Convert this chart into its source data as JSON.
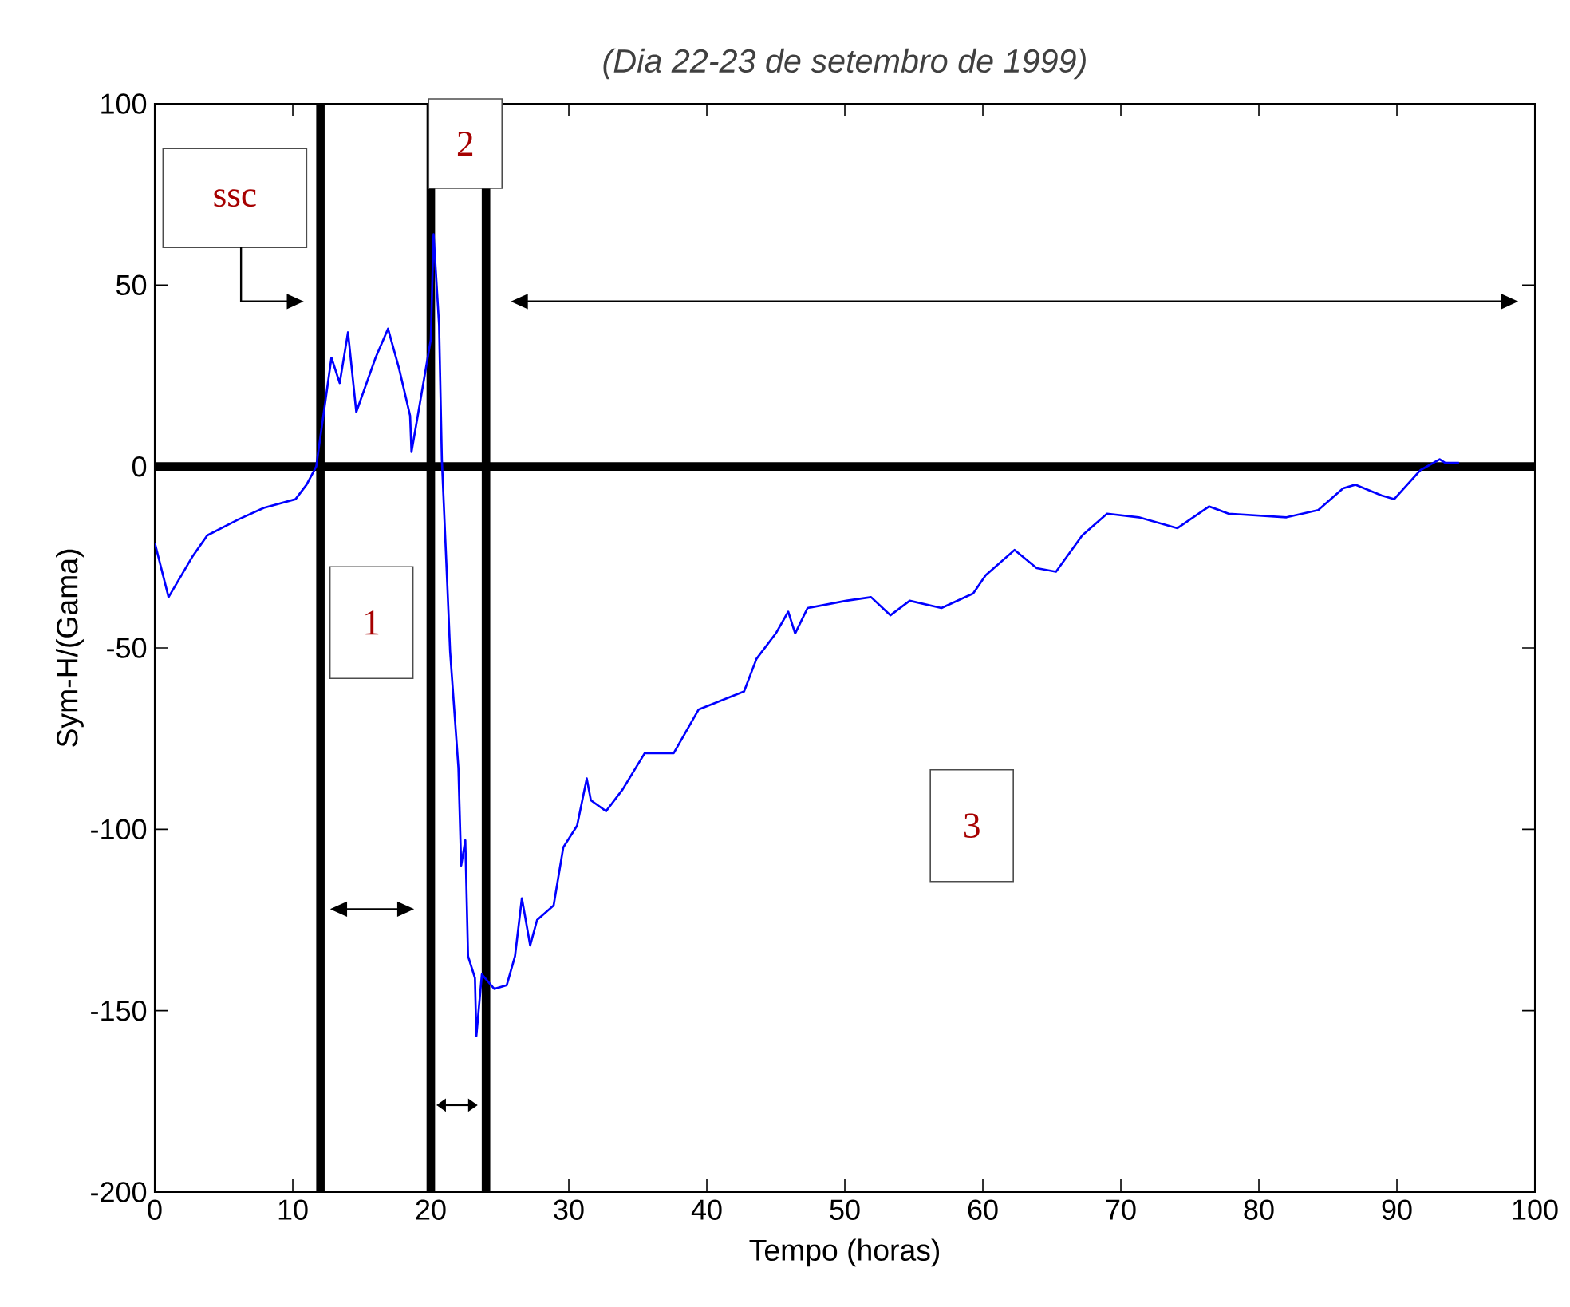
{
  "chart_data": {
    "type": "line",
    "title": "(Dia 22-23 de setembro de 1999)",
    "xlabel": "Tempo (horas)",
    "ylabel": "Sym-H/(Gama)",
    "x": [
      0,
      1,
      2.7,
      3.8,
      6.1,
      7.9,
      10.2,
      11,
      11.7,
      12.8,
      13.4,
      14,
      14.6,
      16,
      16.9,
      17.7,
      18.5,
      18.6,
      19.1,
      20,
      20.2,
      20.6,
      20.8,
      21.2,
      21.4,
      22,
      22.2,
      22.5,
      22.7,
      23.2,
      23.3,
      23.7,
      24.6,
      25.5,
      26.1,
      26.6,
      27.2,
      27.7,
      28.9,
      29.6,
      30.6,
      31.3,
      31.6,
      32.7,
      33.9,
      35.5,
      37.6,
      39.4,
      42.7,
      43.6,
      45,
      45.9,
      46.4,
      47.3,
      50.1,
      51.9,
      53.3,
      54.7,
      57,
      59.3,
      60.2,
      62.3,
      63.9,
      65.3,
      67.2,
      69,
      71.3,
      74.1,
      76.4,
      77.8,
      82,
      84.3,
      86.1,
      87,
      88.9,
      89.8,
      91.7,
      93.1,
      93.5,
      94.5
    ],
    "series": [
      {
        "color": "#0000ff",
        "values": [
          -21,
          -36,
          -25,
          -19,
          -14.5,
          -11.4,
          -9,
          -5,
          0,
          30,
          23,
          37,
          15,
          30,
          38,
          27,
          14,
          4,
          15,
          35,
          64,
          39,
          2,
          -33,
          -51,
          -83,
          -110,
          -103,
          -135,
          -141,
          -157,
          -140,
          -144,
          -143,
          -135,
          -119,
          -132,
          -125,
          -121,
          -105,
          -99,
          -86,
          -92,
          -95,
          -89,
          -79,
          -79,
          -67,
          -62,
          -53,
          -46,
          -40,
          -46,
          -39,
          -37,
          -36,
          -41,
          -37,
          -39,
          -35,
          -30,
          -23,
          -28,
          -29,
          -19,
          -13,
          -14,
          -17,
          -11,
          -13,
          -14,
          -12,
          -6,
          -5,
          -8,
          -9,
          -1,
          2,
          1,
          1
        ]
      }
    ],
    "xlim": [
      0,
      100
    ],
    "ylim": [
      -200,
      100
    ],
    "xticks": [
      0,
      10,
      20,
      30,
      40,
      50,
      60,
      70,
      80,
      90,
      100
    ],
    "yticks": [
      -200,
      -150,
      -100,
      -50,
      0,
      50,
      100
    ],
    "ref_lines": [
      {
        "axis": "x",
        "value": 12,
        "color": "#000000"
      },
      {
        "axis": "x",
        "value": 20,
        "color": "#000000"
      },
      {
        "axis": "x",
        "value": 24,
        "color": "#000000"
      },
      {
        "axis": "y",
        "value": 0,
        "color": "#000000"
      }
    ],
    "annotations": [
      "ssc",
      "1",
      "2",
      "3"
    ],
    "grid": false,
    "marker": "none",
    "line_style": "solid"
  }
}
